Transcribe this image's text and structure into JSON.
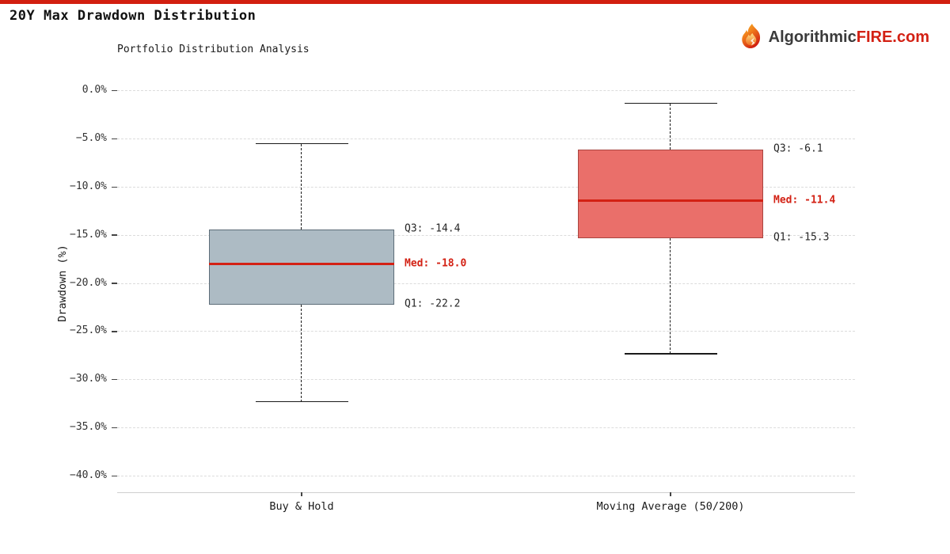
{
  "page": {
    "title": "20Y Max Drawdown Distribution",
    "accent_bar_color": "#d21f10"
  },
  "logo": {
    "icon": "flame-icon",
    "text_dark": "Algorithmic",
    "text_red": "FIRE.com",
    "dark_color": "#3b3b3b",
    "red_color": "#d32114"
  },
  "chart_data": {
    "type": "boxplot",
    "title": "Portfolio Distribution Analysis",
    "ylabel": "Drawdown (%)",
    "ylim": [
      -41.7,
      0.8
    ],
    "grid": true,
    "grid_style": "dashed",
    "grid_color": "#dcdcdc",
    "median_color": "#d32114",
    "whisker_color": "#1a1a1a",
    "yticks": {
      "values": [
        0,
        -5,
        -10,
        -15,
        -20,
        -25,
        -30,
        -35,
        -40
      ],
      "labels": [
        "0.0%",
        "−5.0%",
        "−10.0%",
        "−15.0%",
        "−20.0%",
        "−25.0%",
        "−30.0%",
        "−35.0%",
        "−40.0%"
      ]
    },
    "categories": [
      "Buy & Hold",
      "Moving Average (50/200)"
    ],
    "series": [
      {
        "label": "Buy & Hold",
        "whisker_low": -32.3,
        "q1": -22.2,
        "median": -18.0,
        "q3": -14.4,
        "whisker_high": -5.5,
        "box_fill": "#adbbc4",
        "box_edge": "#5d6d78",
        "labels": {
          "q3": "Q3: -14.4",
          "median": "Med: -18.0",
          "q1": "Q1: -22.2"
        }
      },
      {
        "label": "Moving Average (50/200)",
        "whisker_low": -27.3,
        "q1": -15.3,
        "median": -11.4,
        "q3": -6.1,
        "whisker_high": -1.3,
        "box_fill": "#ea6f6a",
        "box_edge": "#a94540",
        "labels": {
          "q3": "Q3: -6.1",
          "median": "Med: -11.4",
          "q1": "Q1: -15.3"
        }
      }
    ]
  }
}
